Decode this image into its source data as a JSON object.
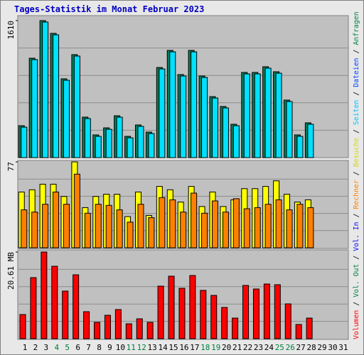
{
  "chart_data": {
    "type": "bar",
    "title": "Tages-Statistik im Monat Februar 2023",
    "categories": [
      "1",
      "2",
      "3",
      "4",
      "5",
      "6",
      "7",
      "8",
      "9",
      "10",
      "11",
      "12",
      "13",
      "14",
      "15",
      "16",
      "17",
      "18",
      "19",
      "20",
      "21",
      "22",
      "23",
      "24",
      "25",
      "26",
      "27",
      "28",
      "29",
      "30",
      "31"
    ],
    "category_colors": [
      "#000000",
      "#000000",
      "#000000",
      "#008040",
      "#008040",
      "#000000",
      "#000000",
      "#000000",
      "#000000",
      "#000000",
      "#008040",
      "#008040",
      "#000000",
      "#000000",
      "#000000",
      "#000000",
      "#000000",
      "#008040",
      "#008040",
      "#000000",
      "#000000",
      "#000000",
      "#000000",
      "#000000",
      "#008040",
      "#008040",
      "#000000",
      "#000000",
      "#000000",
      "#000000",
      "#000000"
    ],
    "panels": [
      {
        "ylim": [
          0,
          1610
        ],
        "yticks": [
          1610
        ],
        "series": [
          {
            "color": "#00805c",
            "values": [
              375,
              1168,
              1610,
              1460,
              926,
              1210,
              476,
              267,
              350,
              492,
              250,
              384,
              300,
              1059,
              1260,
              976,
              1260,
              959,
              717,
              601,
              392,
              1001,
              1001,
              1068,
              1009,
              676,
              267,
              409,
              null,
              null,
              null
            ]
          },
          {
            "color": "#00e0ff",
            "values": [
              358,
              1151,
              1593,
              1443,
              909,
              1193,
              459,
              250,
              333,
              475,
              233,
              367,
              283,
              1042,
              1243,
              959,
              1243,
              942,
              700,
              584,
              375,
              984,
              984,
              1051,
              992,
              659,
              250,
              392,
              null,
              null,
              null
            ]
          }
        ]
      },
      {
        "ylim": [
          0,
          77
        ],
        "yticks": [
          77
        ],
        "series": [
          {
            "color": "#ffff00",
            "values": [
              50,
              52,
              57,
              57,
              46,
              77,
              36,
              46,
              48,
              48,
              28,
              50,
              29,
              55,
              52,
              41,
              55,
              37,
              50,
              37,
              43,
              53,
              53,
              55,
              60,
              48,
              41,
              43,
              null,
              null,
              null
            ]
          },
          {
            "color": "#ff8000",
            "values": [
              34,
              32,
              39,
              50,
              39,
              66,
              31,
              39,
              38,
              34,
              23,
              39,
              27,
              45,
              43,
              32,
              49,
              31,
              42,
              32,
              44,
              35,
              36,
              39,
              43,
              34,
              39,
              36,
              null,
              null,
              null
            ]
          }
        ]
      },
      {
        "ylim": [
          0,
          20.61
        ],
        "yticks": [
          {
            "value": 20.61,
            "label": "20.61 MB"
          }
        ],
        "series": [
          {
            "color": "#ff0000",
            "values": [
              5.74,
              14.53,
              20.61,
              17.23,
              11.32,
              15.2,
              6.42,
              3.89,
              5.57,
              6.93,
              3.55,
              4.73,
              3.89,
              12.5,
              14.87,
              11.99,
              15.03,
              11.49,
              10.3,
              7.43,
              4.9,
              12.67,
              11.82,
              13.01,
              12.84,
              8.28,
              3.38,
              4.9,
              null,
              null,
              null
            ]
          }
        ]
      }
    ],
    "legend": [
      {
        "label": "Volumen",
        "color": "#ff0000"
      },
      {
        "label": "Vol. Out",
        "color": "#008040"
      },
      {
        "label": "Vol. In",
        "color": "#0000ff"
      },
      {
        "label": "Rechner",
        "color": "#ff8000"
      },
      {
        "label": "Besuche",
        "color": "#d8d800"
      },
      {
        "label": "Seiten",
        "color": "#00c0ff"
      },
      {
        "label": "Dateien",
        "color": "#0040ff"
      },
      {
        "label": "Anfragen",
        "color": "#008040"
      }
    ],
    "legend_separator": "/"
  }
}
